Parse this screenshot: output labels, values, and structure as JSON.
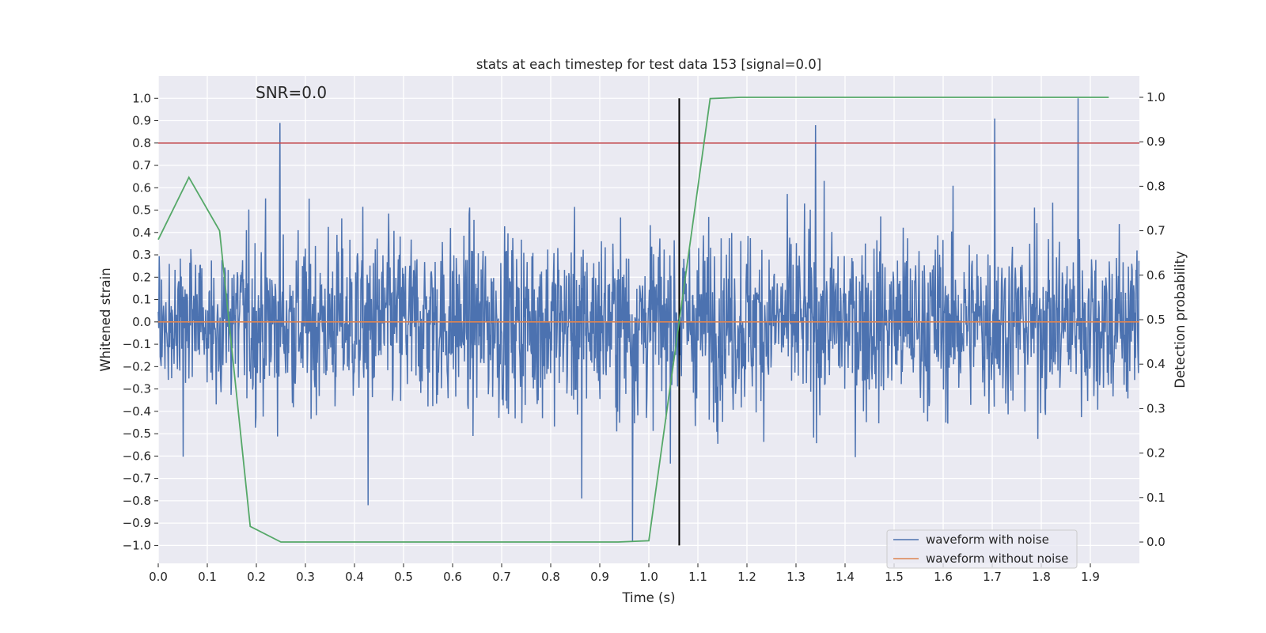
{
  "chart_data": {
    "type": "line",
    "title": "stats at each timestep for test data 153 [signal=0.0]",
    "xlabel": "Time (s)",
    "ylabel": "Whitened strain",
    "y2label": "Detection probability",
    "annotation": "SNR=0.0",
    "xlim": [
      0.0,
      2.0
    ],
    "ylim": [
      -1.08,
      1.1
    ],
    "y2lim": [
      -0.048,
      1.048
    ],
    "x_ticks": [
      "0.0",
      "0.1",
      "0.2",
      "0.3",
      "0.4",
      "0.5",
      "0.6",
      "0.7",
      "0.8",
      "0.9",
      "1.0",
      "1.1",
      "1.2",
      "1.3",
      "1.4",
      "1.5",
      "1.6",
      "1.7",
      "1.8",
      "1.9"
    ],
    "y_ticks": [
      "1.0",
      "0.9",
      "0.8",
      "0.7",
      "0.6",
      "0.5",
      "0.4",
      "0.3",
      "0.2",
      "0.1",
      "0.0",
      "−0.1",
      "−0.2",
      "−0.3",
      "−0.4",
      "−0.5",
      "−0.6",
      "−0.7",
      "−0.8",
      "−0.9",
      "−1.0"
    ],
    "y2_ticks": [
      "1.0",
      "0.9",
      "0.8",
      "0.7",
      "0.6",
      "0.5",
      "0.4",
      "0.3",
      "0.2",
      "0.1",
      "0.0"
    ],
    "grid": true,
    "legend_position": "lower right",
    "threshold_line": {
      "y": 0.8,
      "axis": "left",
      "color": "#c44e52"
    },
    "vertical_marker": {
      "x": 1.062,
      "y_range": [
        -1.0,
        1.0
      ],
      "color": "#000000"
    },
    "series": [
      {
        "name": "waveform with noise",
        "axis": "left",
        "color": "#4c72b0",
        "description_note": "",
        "noise_seed": 153,
        "n_points": 2048,
        "peaks": [
          {
            "x": 0.248,
            "y": 0.89
          },
          {
            "x": 0.428,
            "y": -0.82
          },
          {
            "x": 0.863,
            "y": -0.79
          },
          {
            "x": 0.967,
            "y": -0.98
          },
          {
            "x": 1.34,
            "y": 0.88
          },
          {
            "x": 1.705,
            "y": 0.91
          },
          {
            "x": 1.875,
            "y": 1.0
          }
        ]
      },
      {
        "name": "waveform without noise",
        "axis": "left",
        "color": "#dd8452",
        "x": [
          0.0,
          2.0
        ],
        "y": [
          0.0,
          0.0
        ]
      },
      {
        "name": "",
        "axis": "right",
        "color": "#55a868",
        "x": [
          0.0,
          0.0625,
          0.125,
          0.1875,
          0.25,
          0.3125,
          0.375,
          0.4375,
          0.5,
          0.5625,
          0.625,
          0.6875,
          0.75,
          0.8125,
          0.875,
          0.9375,
          1.0,
          1.0625,
          1.125,
          1.1875,
          1.25,
          1.3125,
          1.375,
          1.4375,
          1.5,
          1.5625,
          1.625,
          1.6875,
          1.75,
          1.8125,
          1.875,
          1.9375
        ],
        "y": [
          0.68,
          0.82,
          0.7,
          0.035,
          0.0,
          0.0,
          0.0,
          0.0,
          0.0,
          0.0,
          0.0,
          0.0,
          0.0,
          0.0,
          0.0,
          0.0,
          0.003,
          0.5,
          0.997,
          1.0,
          1.0,
          1.0,
          1.0,
          1.0,
          1.0,
          1.0,
          1.0,
          1.0,
          1.0,
          1.0,
          1.0,
          1.0
        ]
      }
    ]
  }
}
